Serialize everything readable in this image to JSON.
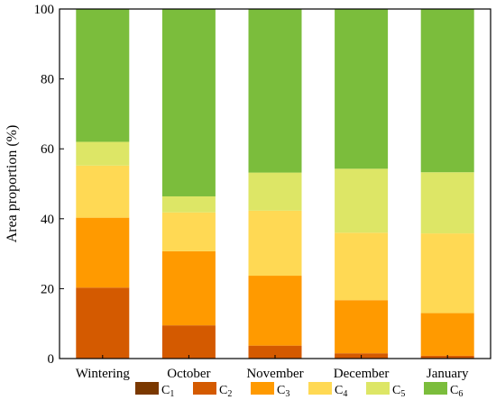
{
  "chart_data": {
    "type": "bar",
    "stacked": true,
    "title": "",
    "xlabel": "",
    "ylabel": "Area proportion  (%)",
    "ylim": [
      0,
      100
    ],
    "yticks": [
      "0",
      "20",
      "40",
      "60",
      "80",
      "100"
    ],
    "categories": [
      "Wintering",
      "October",
      "November",
      "December",
      "January"
    ],
    "legend_position": "bottom",
    "grid": false,
    "series": [
      {
        "name": "C1",
        "label_main": "C",
        "label_sub": "1",
        "color": "#7a3800",
        "values": [
          0,
          0,
          0,
          0,
          0
        ]
      },
      {
        "name": "C2",
        "label_main": "C",
        "label_sub": "2",
        "color": "#d45a00",
        "values": [
          20.3,
          9.5,
          3.7,
          1.5,
          0.8
        ]
      },
      {
        "name": "C3",
        "label_main": "C",
        "label_sub": "3",
        "color": "#ff9a00",
        "values": [
          20.0,
          21.2,
          20.0,
          15.2,
          12.2
        ]
      },
      {
        "name": "C4",
        "label_main": "C",
        "label_sub": "4",
        "color": "#ffd954",
        "values": [
          14.9,
          11.1,
          18.6,
          19.3,
          22.8
        ]
      },
      {
        "name": "C5",
        "label_main": "C",
        "label_sub": "5",
        "color": "#dde666",
        "values": [
          6.8,
          4.6,
          10.9,
          18.3,
          17.5
        ]
      },
      {
        "name": "C6",
        "label_main": "C",
        "label_sub": "6",
        "color": "#7bbd3c",
        "values": [
          38.0,
          53.6,
          46.8,
          45.7,
          46.7
        ]
      }
    ]
  }
}
